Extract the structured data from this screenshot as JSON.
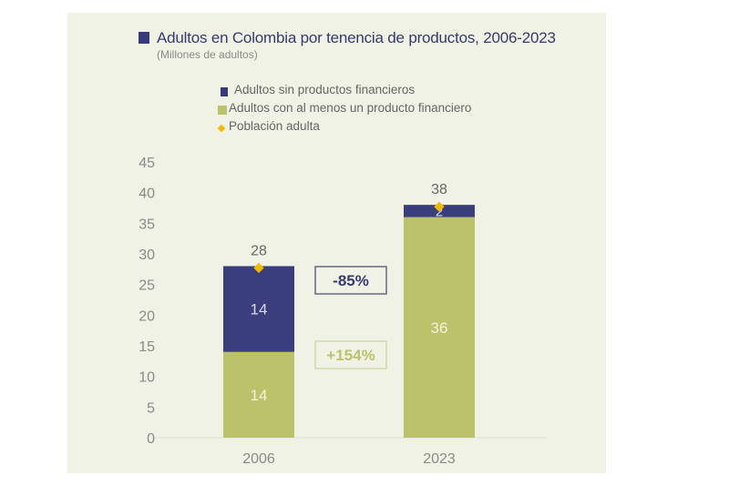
{
  "chart_data": {
    "type": "bar",
    "stacked": true,
    "title": "Adultos en Colombia por tenencia de productos, 2006-2023",
    "subtitle": "(Millones de adultos)",
    "xlabel": "",
    "ylabel": "",
    "categories": [
      "2006",
      "2023"
    ],
    "series": [
      {
        "name": "Adultos con al menos un producto financiero",
        "values": [
          14,
          36
        ],
        "color": "#bcc26a",
        "labels": [
          "14",
          "36"
        ]
      },
      {
        "name": "Adultos sin productos financieros",
        "values": [
          14,
          2
        ],
        "color": "#3a3e7c",
        "labels": [
          "14",
          "2"
        ]
      }
    ],
    "markers": {
      "name": "Población adulta",
      "values": [
        28,
        38
      ],
      "color": "#f5b800",
      "labels": [
        "28",
        "38"
      ]
    },
    "ylim": [
      0,
      45
    ],
    "yticks": [
      0,
      5,
      10,
      15,
      20,
      25,
      30,
      35,
      40,
      45
    ],
    "grid": false,
    "legend": [
      {
        "label": "Adultos sin productos financieros",
        "shape": "square",
        "color": "#363a7a"
      },
      {
        "label": "Adultos con al menos un producto financiero",
        "shape": "square",
        "color": "#bcc26a"
      },
      {
        "label": "Población adulta",
        "shape": "diamond",
        "color": "#f5b800"
      }
    ],
    "legend_placement": "top-center",
    "annotations": [
      {
        "text": "-85%",
        "refers_to": "Adultos sin productos financieros",
        "color": "#363a6e",
        "border": "#5a5d7c"
      },
      {
        "text": "+154%",
        "refers_to": "Adultos con al menos un producto financiero",
        "color": "#bcc26a",
        "border": "#d3d6a6"
      }
    ]
  }
}
